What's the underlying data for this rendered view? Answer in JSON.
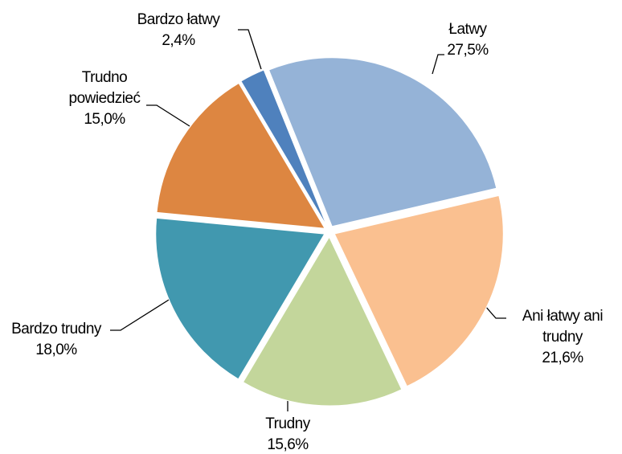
{
  "chart_data": {
    "type": "pie",
    "categories": [
      "Łatwy",
      "Ani łatwy ani trudny",
      "Trudny",
      "Bardzo trudny",
      "Trudno powiedzieć",
      "Bardzo łatwy"
    ],
    "values": [
      27.5,
      21.6,
      15.6,
      18.0,
      15.0,
      2.4
    ],
    "value_labels": [
      "27,5%",
      "21,6%",
      "15,6%",
      "18,0%",
      "15,0%",
      "2,4%"
    ],
    "colors": [
      "#95b3d7",
      "#fac090",
      "#c3d69b",
      "#4198af",
      "#dd8641",
      "#4f81bd"
    ]
  }
}
